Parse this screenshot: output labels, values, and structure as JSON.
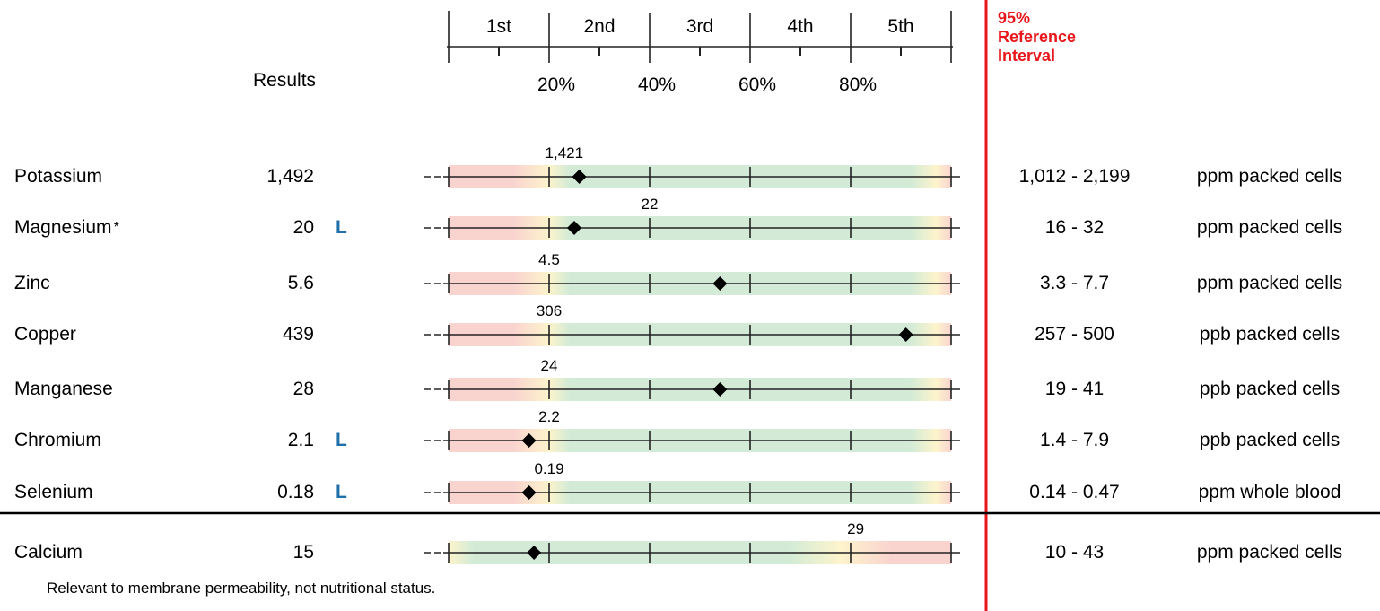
{
  "header": {
    "results_label": "Results",
    "reference_interval": [
      "95%",
      "Reference",
      "Interval"
    ],
    "quintiles": [
      "1st",
      "2nd",
      "3rd",
      "4th",
      "5th"
    ],
    "percentiles": [
      "20%",
      "40%",
      "60%",
      "80%"
    ]
  },
  "rows": [
    {
      "name": "Potassium",
      "asterisk": "",
      "result": "1,492",
      "flag": "",
      "marker_label": "1,421",
      "range": "1,012 - 2,199",
      "unit": "ppm packed cells",
      "marker_percentile": 26,
      "label_percentile": 23,
      "gradient": "normal"
    },
    {
      "name": "Magnesium",
      "asterisk": "*",
      "result": "20",
      "flag": "L",
      "marker_label": "22",
      "range": "16 - 32",
      "unit": "ppm packed cells",
      "marker_percentile": 25,
      "label_percentile": 40,
      "gradient": "normal"
    },
    {
      "name": "Zinc",
      "asterisk": "",
      "result": "5.6",
      "flag": "",
      "marker_label": "4.5",
      "range": "3.3 - 7.7",
      "unit": "ppm packed cells",
      "marker_percentile": 54,
      "label_percentile": 20,
      "gradient": "normal"
    },
    {
      "name": "Copper",
      "asterisk": "",
      "result": "439",
      "flag": "",
      "marker_label": "306",
      "range": "257 - 500",
      "unit": "ppb packed cells",
      "marker_percentile": 91,
      "label_percentile": 20,
      "gradient": "normal"
    },
    {
      "name": "Manganese",
      "asterisk": "",
      "result": "28",
      "flag": "",
      "marker_label": "24",
      "range": "19 - 41",
      "unit": "ppb packed cells",
      "marker_percentile": 54,
      "label_percentile": 20,
      "gradient": "normal"
    },
    {
      "name": "Chromium",
      "asterisk": "",
      "result": "2.1",
      "flag": "L",
      "marker_label": "2.2",
      "range": "1.4 - 7.9",
      "unit": "ppb packed cells",
      "marker_percentile": 16,
      "label_percentile": 20,
      "gradient": "normal"
    },
    {
      "name": "Selenium",
      "asterisk": "",
      "result": "0.18",
      "flag": "L",
      "marker_label": "0.19",
      "range": "0.14 - 0.47",
      "unit": "ppm whole blood",
      "marker_percentile": 16,
      "label_percentile": 20,
      "gradient": "normal"
    },
    {
      "name": "Calcium",
      "asterisk": "",
      "result": "15",
      "flag": "",
      "marker_label": "29",
      "range": "10 - 43",
      "unit": "ppm packed cells",
      "marker_percentile": 17,
      "label_percentile": 81,
      "gradient": "inverse"
    }
  ],
  "footnote": "Relevant to membrane permeability, not nutritional status.",
  "colors": {
    "accent_red": "#e8161b",
    "flag_blue": "#1f6fa8",
    "low_zone": "#f9d4cf",
    "mid_zone": "#fdf4cc",
    "good_zone": "#d3ebd6"
  }
}
